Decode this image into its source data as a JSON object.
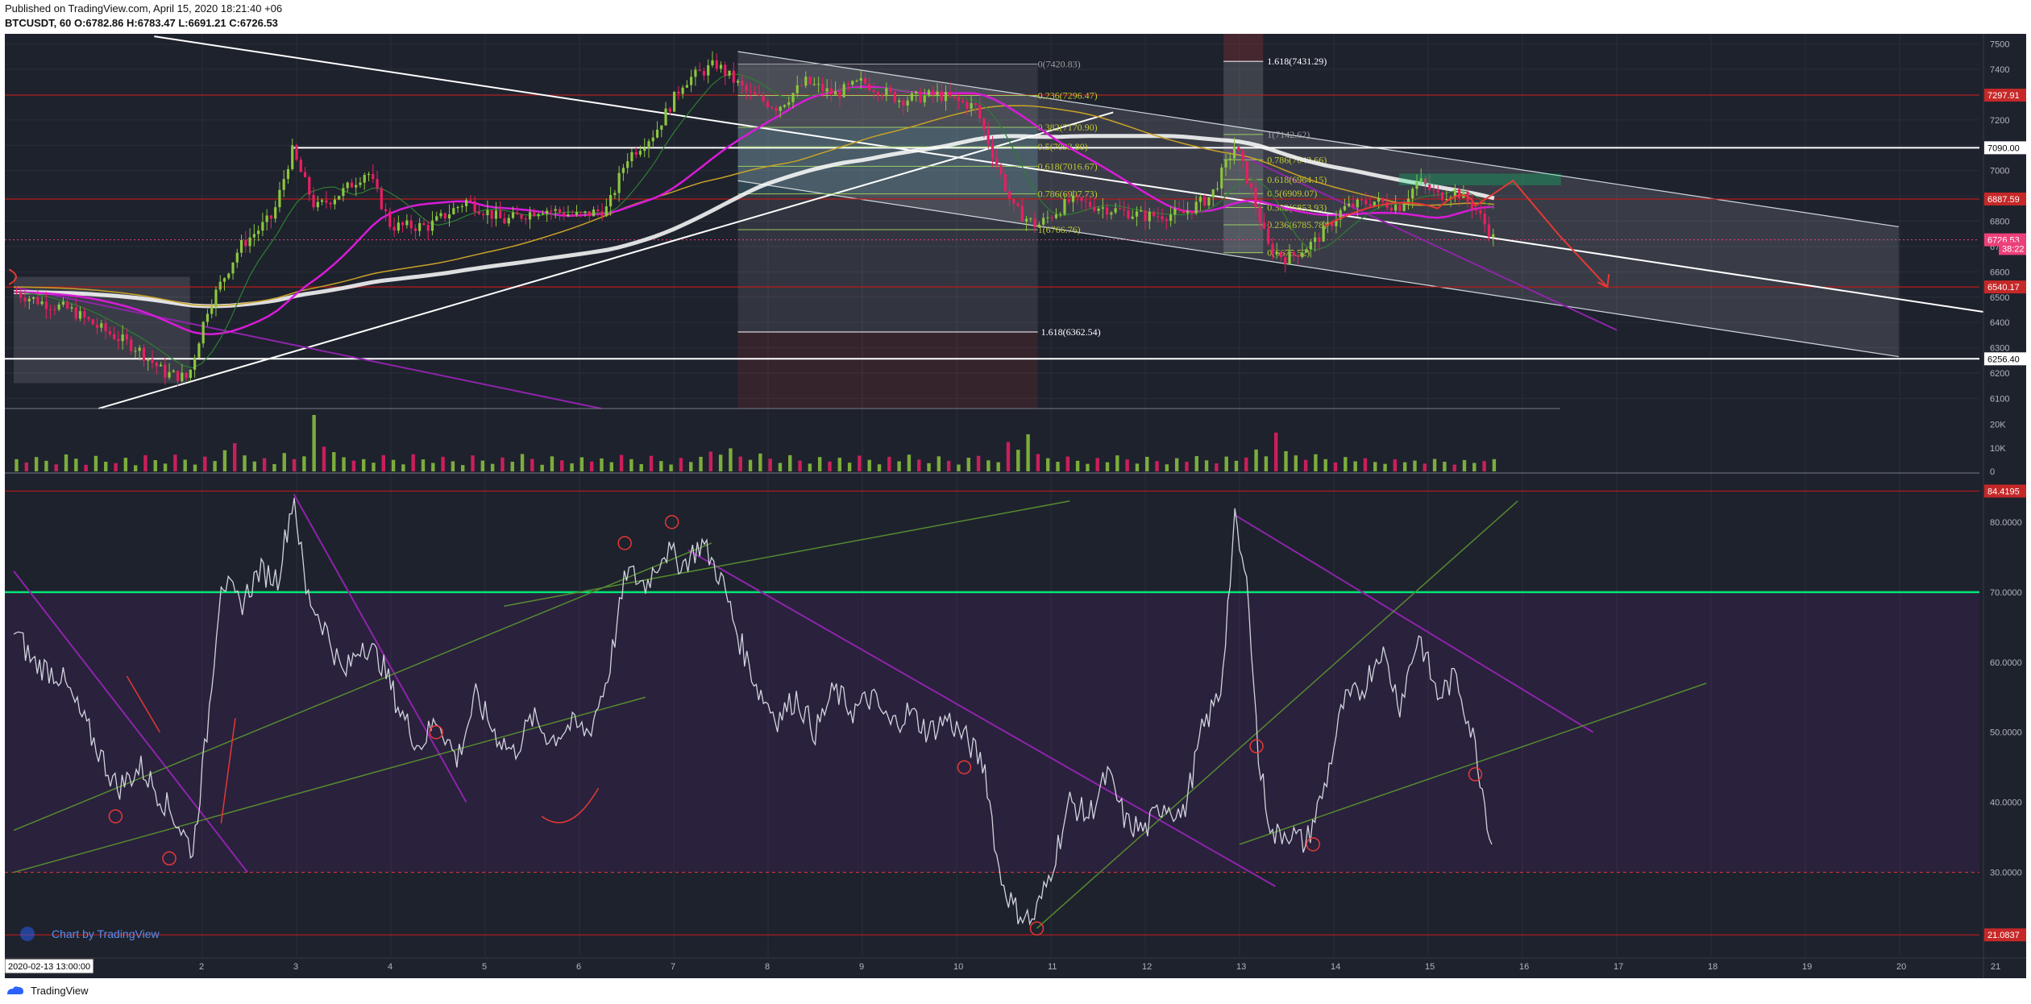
{
  "header": {
    "published": "Published on TradingView.com, April 15, 2020 18:21:40 +06",
    "symbol_line": "BTCUSDT, 60 O:6782.86 H:6783.47 L:6691.21 C:6726.53"
  },
  "footer": {
    "brand": "TradingView"
  },
  "watermark": "Chart by TradingView",
  "crosshair_date": "2020-02-13 13:00:00",
  "colors": {
    "background": "#1e222d",
    "up_candle": "#8cc63f",
    "down_candle": "#e91e63",
    "magenta": "#d81bd8",
    "purple": "#8e24aa",
    "red_line": "#b71c1c",
    "green_line": "#00e676",
    "badge_red": "#c62828",
    "badge_pink": "#ec407a"
  },
  "chart_data": {
    "type": "candlestick",
    "symbol": "BTCUSDT",
    "interval": "60",
    "ohlc_last": {
      "open": 6782.86,
      "high": 6783.47,
      "low": 6691.21,
      "close": 6726.53
    },
    "x_ticks": [
      "2",
      "3",
      "4",
      "5",
      "6",
      "7",
      "8",
      "9",
      "10",
      "11",
      "12",
      "13",
      "14",
      "15",
      "16",
      "17",
      "18",
      "19",
      "20",
      "21"
    ],
    "price_axis": {
      "ticks": [
        7500,
        7400,
        7300,
        7200,
        7100,
        7000,
        6900,
        6800,
        6700,
        6600,
        6500,
        6400,
        6300,
        6200,
        6100
      ],
      "range": [
        6060,
        7540
      ]
    },
    "price_path": [
      [
        0,
        6520
      ],
      [
        0.3,
        6480
      ],
      [
        0.6,
        6450
      ],
      [
        0.9,
        6380
      ],
      [
        1.3,
        6300
      ],
      [
        1.6,
        6200
      ],
      [
        1.85,
        6180
      ],
      [
        2.05,
        6450
      ],
      [
        2.4,
        6700
      ],
      [
        2.75,
        6820
      ],
      [
        2.95,
        7080
      ],
      [
        3.2,
        6850
      ],
      [
        3.5,
        6920
      ],
      [
        3.75,
        7000
      ],
      [
        4.0,
        6780
      ],
      [
        4.4,
        6780
      ],
      [
        4.8,
        6880
      ],
      [
        5.2,
        6800
      ],
      [
        5.6,
        6850
      ],
      [
        6.0,
        6820
      ],
      [
        6.3,
        6850
      ],
      [
        6.5,
        7050
      ],
      [
        6.8,
        7150
      ],
      [
        7.1,
        7350
      ],
      [
        7.45,
        7420
      ],
      [
        7.8,
        7300
      ],
      [
        8.1,
        7250
      ],
      [
        8.4,
        7350
      ],
      [
        8.7,
        7300
      ],
      [
        9.0,
        7350
      ],
      [
        9.4,
        7280
      ],
      [
        9.8,
        7300
      ],
      [
        10.2,
        7250
      ],
      [
        10.45,
        7000
      ],
      [
        10.6,
        6850
      ],
      [
        10.85,
        6780
      ],
      [
        11.2,
        6880
      ],
      [
        11.6,
        6850
      ],
      [
        12.0,
        6820
      ],
      [
        12.4,
        6830
      ],
      [
        12.7,
        6900
      ],
      [
        12.95,
        7100
      ],
      [
        13.1,
        6950
      ],
      [
        13.3,
        6700
      ],
      [
        13.5,
        6650
      ],
      [
        13.8,
        6720
      ],
      [
        14.1,
        6850
      ],
      [
        14.4,
        6880
      ],
      [
        14.7,
        6860
      ],
      [
        14.9,
        6960
      ],
      [
        15.1,
        6900
      ],
      [
        15.3,
        6920
      ],
      [
        15.5,
        6850
      ],
      [
        15.7,
        6727
      ]
    ],
    "fib_left": [
      {
        "label": "0(7420.83)",
        "level": 7420.83
      },
      {
        "label": "0.236(7296.47)",
        "level": 7296.47
      },
      {
        "label": "0.382(7170.90)",
        "level": 7170.9
      },
      {
        "label": "0.5(7093.80)",
        "level": 7093.8
      },
      {
        "label": "0.618(7016.67)",
        "level": 7016.67
      },
      {
        "label": "0.786(6907.73)",
        "level": 6907.73
      },
      {
        "label": "1(6766.76)",
        "level": 6766.76
      },
      {
        "label": "1.618(6362.54)",
        "level": 6362.54
      }
    ],
    "fib_right": [
      {
        "label": "1.618(7431.29)",
        "level": 7431.29
      },
      {
        "label": "1(7142.62)",
        "level": 7142.62
      },
      {
        "label": "0.786(7042.66)",
        "level": 7042.66
      },
      {
        "label": "0.618(6964.15)",
        "level": 6964.15
      },
      {
        "label": "0.5(6909.07)",
        "level": 6909.07
      },
      {
        "label": "0.382(6853.93)",
        "level": 6853.93
      },
      {
        "label": "0.236(6785.78)",
        "level": 6785.78
      },
      {
        "label": "0(6675.52)",
        "level": 6675.52
      }
    ],
    "horizontal_lines": [
      {
        "label": "7297.91",
        "level": 7297.91,
        "style": "red"
      },
      {
        "label": "7090.00",
        "level": 7090.0,
        "style": "white"
      },
      {
        "label": "6887.59",
        "level": 6887.59,
        "style": "red"
      },
      {
        "label": "6540.17",
        "level": 6540.17,
        "style": "red"
      },
      {
        "label": "6256.40",
        "level": 6256.4,
        "style": "white"
      }
    ],
    "price_badges": [
      {
        "label": "6726.53",
        "level": 6726.53
      },
      {
        "label": "38:22",
        "level": 6692
      }
    ],
    "volume_axis": {
      "ticks": [
        "20K",
        "10K",
        "0"
      ],
      "values": [
        20000,
        10000,
        0
      ],
      "max": 24000
    },
    "volume_values": [
      5200,
      3800,
      6100,
      4500,
      3000,
      7200,
      5400,
      2800,
      6600,
      4100,
      3500,
      5800,
      2600,
      6900,
      4800,
      3300,
      7100,
      5000,
      2900,
      6300,
      4400,
      9000,
      12000,
      6800,
      4200,
      5600,
      3100,
      7800,
      5200,
      6400,
      24000,
      10500,
      8200,
      6000,
      4600,
      5200,
      3700,
      6900,
      4900,
      3000,
      7300,
      5100,
      3600,
      6200,
      4300,
      2700,
      6800,
      4600,
      3200,
      5900,
      4100,
      7400,
      5300,
      2800,
      6400,
      4700,
      3400,
      6000,
      4200,
      5500,
      3900,
      7000,
      5200,
      3100,
      6600,
      4400,
      2900,
      5700,
      4000,
      6200,
      8400,
      7100,
      9800,
      6300,
      4900,
      7600,
      5400,
      3600,
      6900,
      4600,
      3300,
      6100,
      4200,
      5800,
      3700,
      6700,
      4900,
      3000,
      6200,
      4300,
      7100,
      5000,
      3500,
      6400,
      4500,
      2900,
      5800,
      6600,
      4700,
      3900,
      12500,
      9200,
      15800,
      7400,
      5600,
      4100,
      6300,
      4500,
      3200,
      5700,
      3900,
      6800,
      5100,
      3300,
      6200,
      4400,
      3000,
      5600,
      4100,
      6500,
      4700,
      3400,
      6300,
      4500,
      5900,
      9300,
      6400,
      16500,
      8600,
      6800,
      4900,
      7300,
      5200,
      3800,
      6100,
      4300,
      5600,
      4000,
      3200,
      5100,
      3900,
      4600,
      3300,
      5300,
      4100,
      2900,
      4800,
      3600,
      4400,
      5200
    ],
    "rsi_axis": {
      "ticks": [
        "80.0000",
        "70.0000",
        "60.0000",
        "50.0000",
        "40.0000",
        "30.0000"
      ],
      "values": [
        80,
        70,
        60,
        50,
        40,
        30
      ],
      "range": [
        18,
        87
      ]
    },
    "rsi_levels": [
      {
        "label": "84.4195",
        "value": 84.4195,
        "style": "red"
      },
      {
        "label": "70.0000",
        "value": 70,
        "style": "green"
      },
      {
        "label": "30.0000",
        "value": 30,
        "style": "dashed"
      },
      {
        "label": "21.0837",
        "value": 21.0837,
        "style": "red"
      }
    ],
    "rsi_path": [
      [
        0,
        65
      ],
      [
        0.2,
        60
      ],
      [
        0.5,
        58
      ],
      [
        0.8,
        50
      ],
      [
        1.1,
        42
      ],
      [
        1.35,
        45
      ],
      [
        1.7,
        38
      ],
      [
        1.9,
        33
      ],
      [
        2.05,
        50
      ],
      [
        2.2,
        72
      ],
      [
        2.4,
        68
      ],
      [
        2.6,
        73
      ],
      [
        2.8,
        72
      ],
      [
        2.97,
        84
      ],
      [
        3.1,
        70
      ],
      [
        3.3,
        65
      ],
      [
        3.5,
        58
      ],
      [
        3.7,
        63
      ],
      [
        3.9,
        60
      ],
      [
        4.1,
        53
      ],
      [
        4.3,
        48
      ],
      [
        4.5,
        52
      ],
      [
        4.7,
        46
      ],
      [
        4.9,
        55
      ],
      [
        5.1,
        50
      ],
      [
        5.3,
        47
      ],
      [
        5.5,
        52
      ],
      [
        5.7,
        49
      ],
      [
        5.9,
        51
      ],
      [
        6.1,
        50
      ],
      [
        6.3,
        58
      ],
      [
        6.5,
        73
      ],
      [
        6.7,
        71
      ],
      [
        6.9,
        76
      ],
      [
        7.1,
        74
      ],
      [
        7.3,
        77
      ],
      [
        7.5,
        72
      ],
      [
        7.7,
        63
      ],
      [
        7.9,
        56
      ],
      [
        8.1,
        52
      ],
      [
        8.3,
        55
      ],
      [
        8.5,
        50
      ],
      [
        8.7,
        56
      ],
      [
        8.9,
        53
      ],
      [
        9.1,
        55
      ],
      [
        9.3,
        51
      ],
      [
        9.5,
        53
      ],
      [
        9.7,
        50
      ],
      [
        9.9,
        52
      ],
      [
        10.1,
        49
      ],
      [
        10.3,
        45
      ],
      [
        10.45,
        30
      ],
      [
        10.6,
        25
      ],
      [
        10.8,
        23
      ],
      [
        10.95,
        28
      ],
      [
        11.2,
        40
      ],
      [
        11.4,
        38
      ],
      [
        11.6,
        44
      ],
      [
        11.8,
        37
      ],
      [
        12.0,
        36
      ],
      [
        12.2,
        40
      ],
      [
        12.4,
        38
      ],
      [
        12.6,
        50
      ],
      [
        12.8,
        56
      ],
      [
        12.95,
        80
      ],
      [
        13.1,
        69
      ],
      [
        13.2,
        46
      ],
      [
        13.35,
        35
      ],
      [
        13.5,
        36
      ],
      [
        13.7,
        34
      ],
      [
        13.9,
        42
      ],
      [
        14.1,
        54
      ],
      [
        14.3,
        56
      ],
      [
        14.5,
        62
      ],
      [
        14.7,
        54
      ],
      [
        14.9,
        64
      ],
      [
        15.1,
        55
      ],
      [
        15.3,
        58
      ],
      [
        15.5,
        48
      ],
      [
        15.7,
        32
      ]
    ]
  }
}
